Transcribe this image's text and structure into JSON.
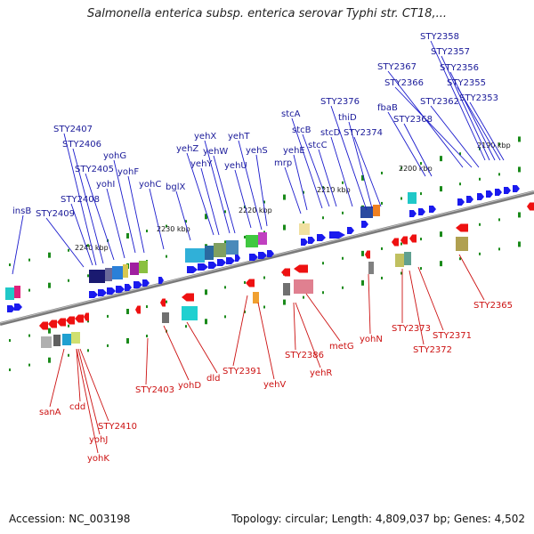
{
  "title": "Salmonella enterica subsp. enterica serovar Typhi str. CT18,...",
  "footer": {
    "accession": "Accession: NC_003198",
    "summary": "Topology: circular; Length: 4,809,037 bp; Genes: 4,502"
  },
  "colors": {
    "backbone": "#8a8a8a",
    "forward_gene": "#1a1aee",
    "reverse_gene": "#ee1111",
    "tick": "#1a8a1a",
    "forward_label": "#1a1a99",
    "reverse_label": "#cc1111"
  },
  "scale_labels": [
    {
      "text": "2190 kbp"
    },
    {
      "text": "2200 kbp"
    },
    {
      "text": "2210 kbp"
    },
    {
      "text": "2220 kbp"
    },
    {
      "text": "2230 kbp"
    },
    {
      "text": "2240 kbp"
    }
  ],
  "forward_labels": [
    "STY2358",
    "STY2357",
    "STY2356",
    "STY2355",
    "STY2353",
    "STY2367",
    "STY2366",
    "STY2362",
    "fbaB",
    "STY2368",
    "STY2376",
    "thiD",
    "stcA",
    "stcB",
    "STY2374",
    "stcC",
    "stcD",
    "yehT",
    "yehX",
    "yehE",
    "yehZ",
    "yehW",
    "yehS",
    "mrp",
    "yehY",
    "yehU",
    "bglX",
    "yohC",
    "yohG",
    "STY2407",
    "STY2406",
    "yohF",
    "STY2405",
    "yohI",
    "STY2408",
    "STY2409",
    "insB"
  ],
  "reverse_labels": [
    "STY2365",
    "yohN",
    "STY2373",
    "STY2371",
    "metG",
    "STY2372",
    "STY2386",
    "yehR",
    "STY2391",
    "dld",
    "yehV",
    "STY2403",
    "yohD",
    "sanA",
    "cdd",
    "STY2410",
    "yohJ",
    "yohK"
  ]
}
